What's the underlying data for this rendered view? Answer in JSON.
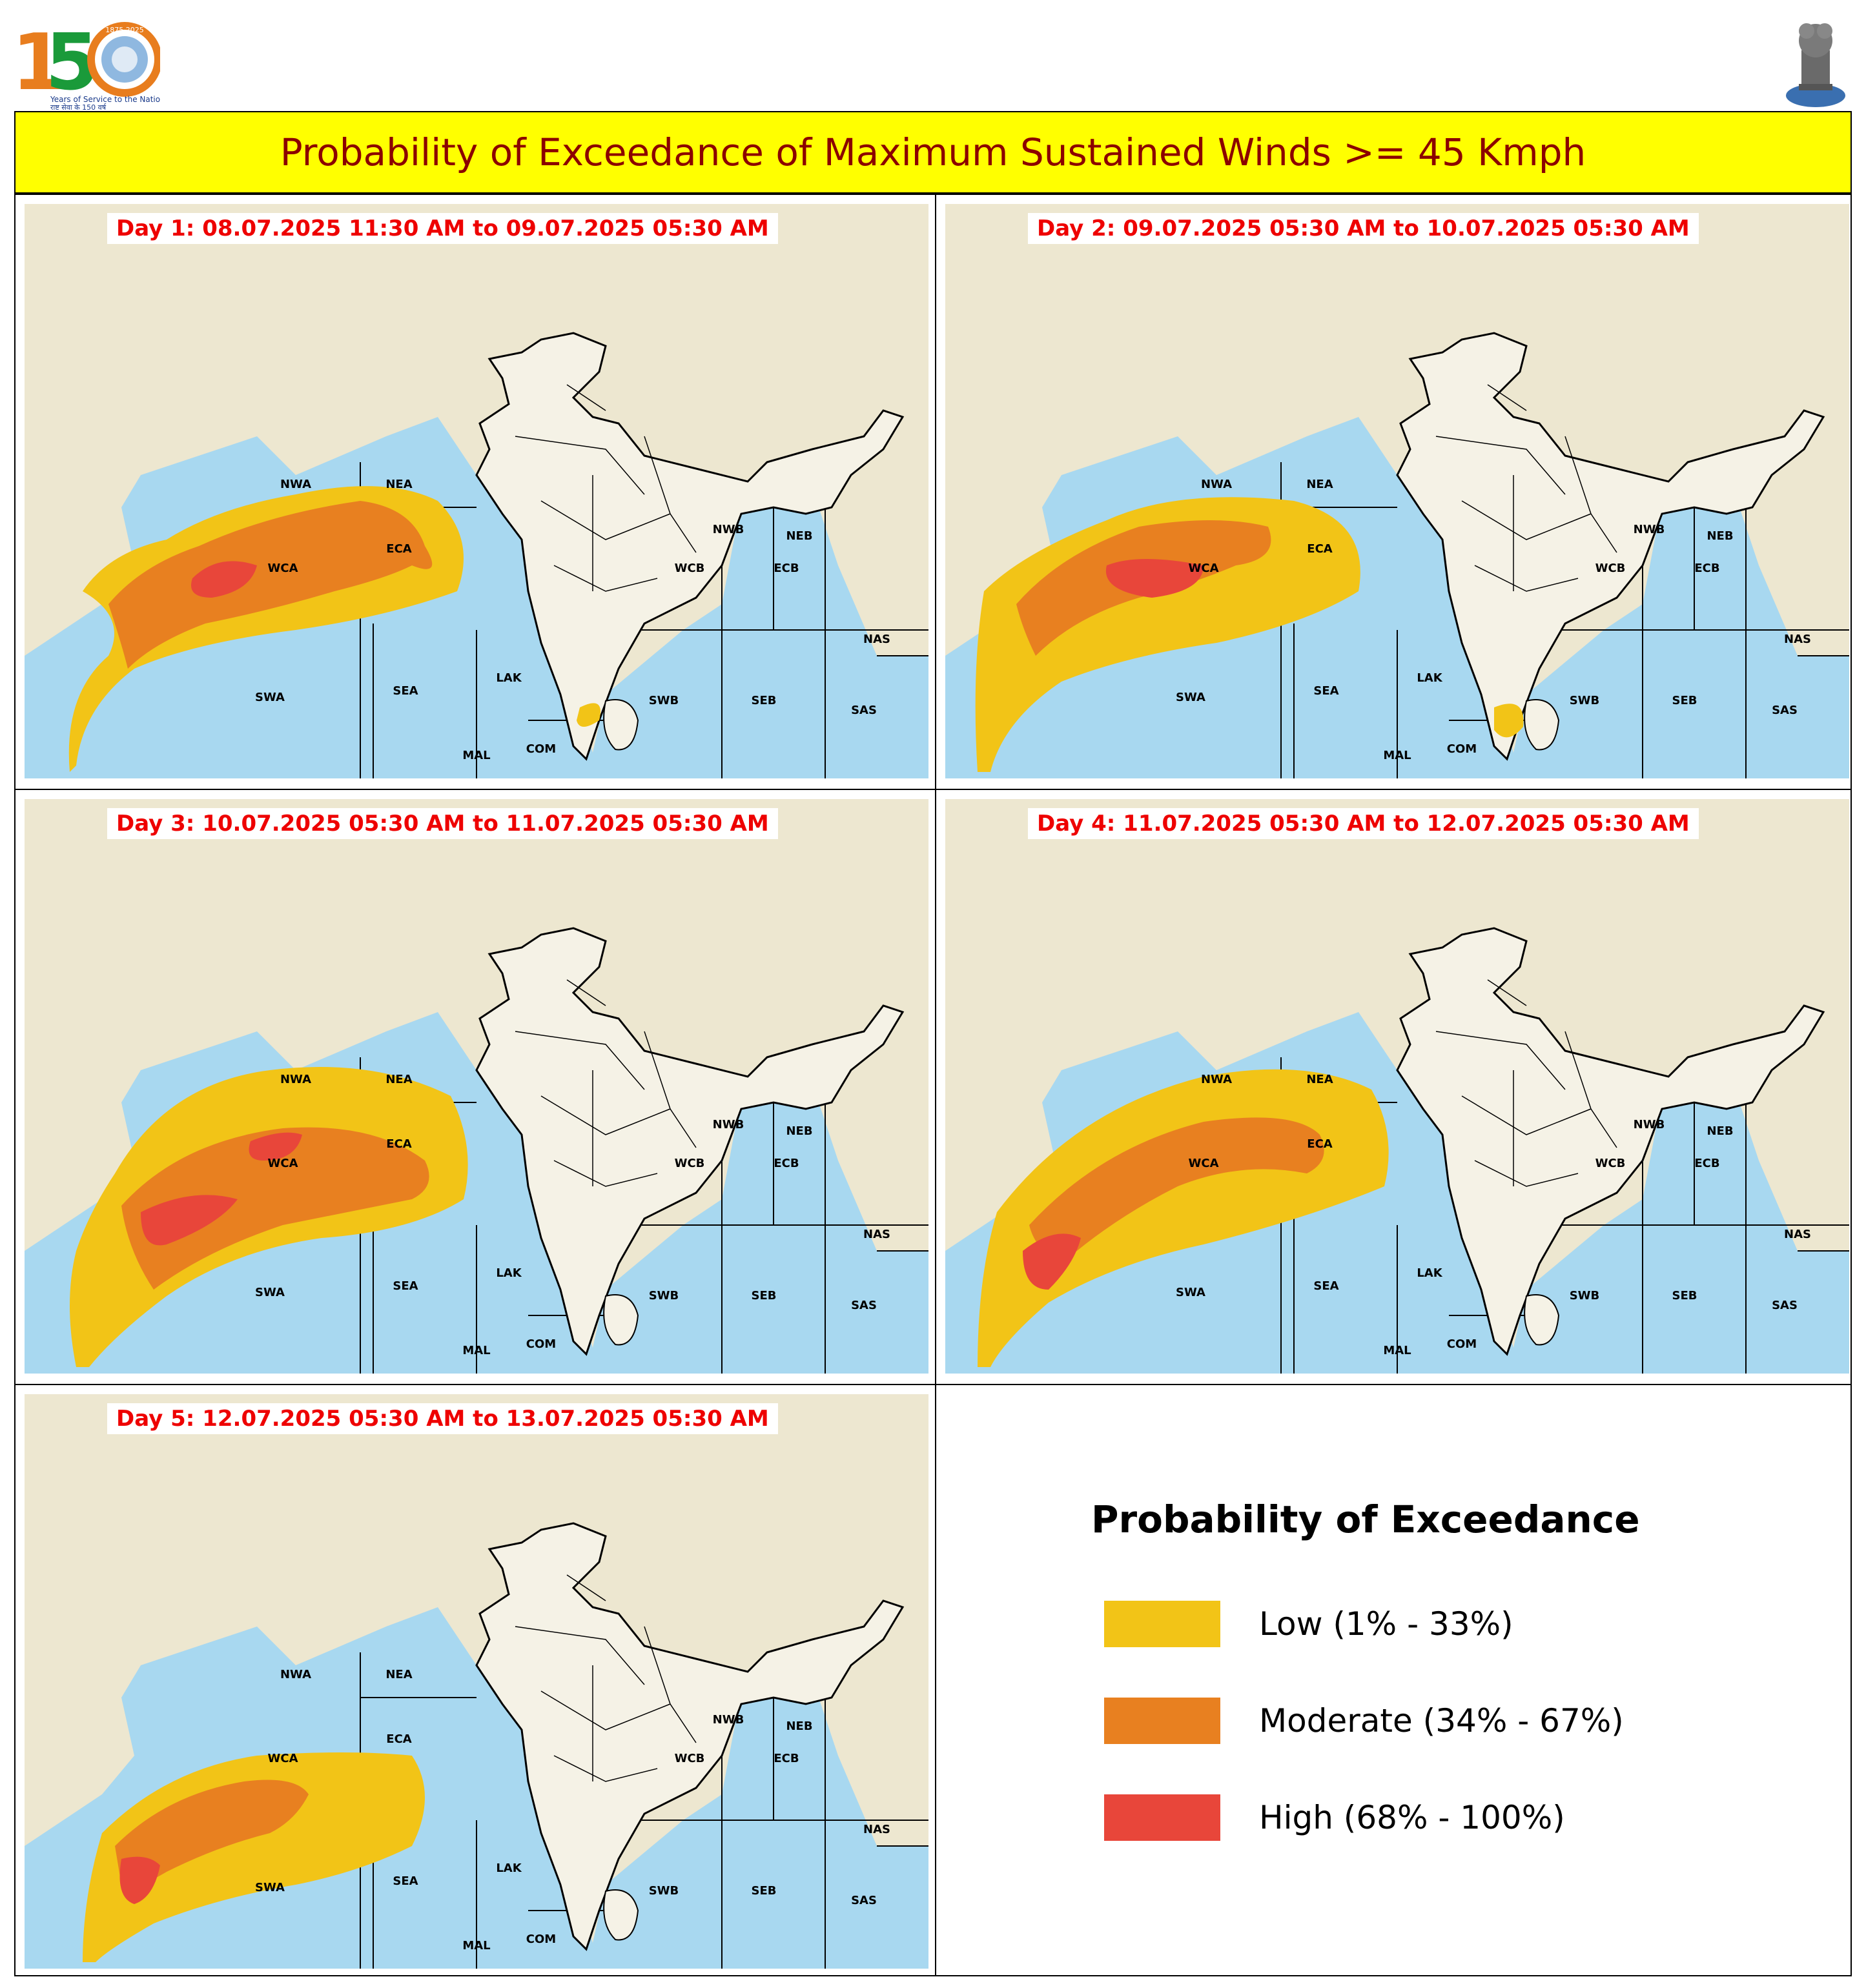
{
  "header": {
    "title": "Probability of Exceedance of Maximum Sustained Winds >= 45 Kmph",
    "logo_left": {
      "number": "150",
      "years": "1875 2025",
      "tagline": "Years of Service to the Nation",
      "tagline_hindi": "राष्ट्र सेवा के 150 वर्ष",
      "icon": "imd-150-logo"
    },
    "logo_right": {
      "icon": "national-emblem"
    }
  },
  "colors": {
    "low": "#f2c417",
    "moderate": "#e88020",
    "high": "#e8463a",
    "sea": "#a8d8f0",
    "land": "#ede7d0",
    "label": "#ee0000"
  },
  "region_labels": [
    "NWA",
    "NEA",
    "ECA",
    "WCA",
    "SWA",
    "SEA",
    "LAK",
    "MAL",
    "COM",
    "SWB",
    "SEB",
    "NWB",
    "NEB",
    "WCB",
    "ECB",
    "NAS",
    "SAS"
  ],
  "panels": [
    {
      "label": "Day 1: 08.07.2025 11:30 AM to 09.07.2025 05:30 AM"
    },
    {
      "label": "Day 2: 09.07.2025 05:30 AM to 10.07.2025 05:30 AM"
    },
    {
      "label": "Day 3: 10.07.2025 05:30 AM to 11.07.2025 05:30 AM"
    },
    {
      "label": "Day 4: 11.07.2025 05:30 AM to 12.07.2025 05:30 AM"
    },
    {
      "label": "Day 5: 12.07.2025 05:30 AM to 13.07.2025 05:30 AM"
    }
  ],
  "legend": {
    "title": "Probability of Exceedance",
    "items": [
      {
        "label": "Low (1% - 33%)",
        "color": "#f2c417"
      },
      {
        "label": "Moderate (34% - 67%)",
        "color": "#e88020"
      },
      {
        "label": "High (68% - 100%)",
        "color": "#e8463a"
      }
    ]
  }
}
